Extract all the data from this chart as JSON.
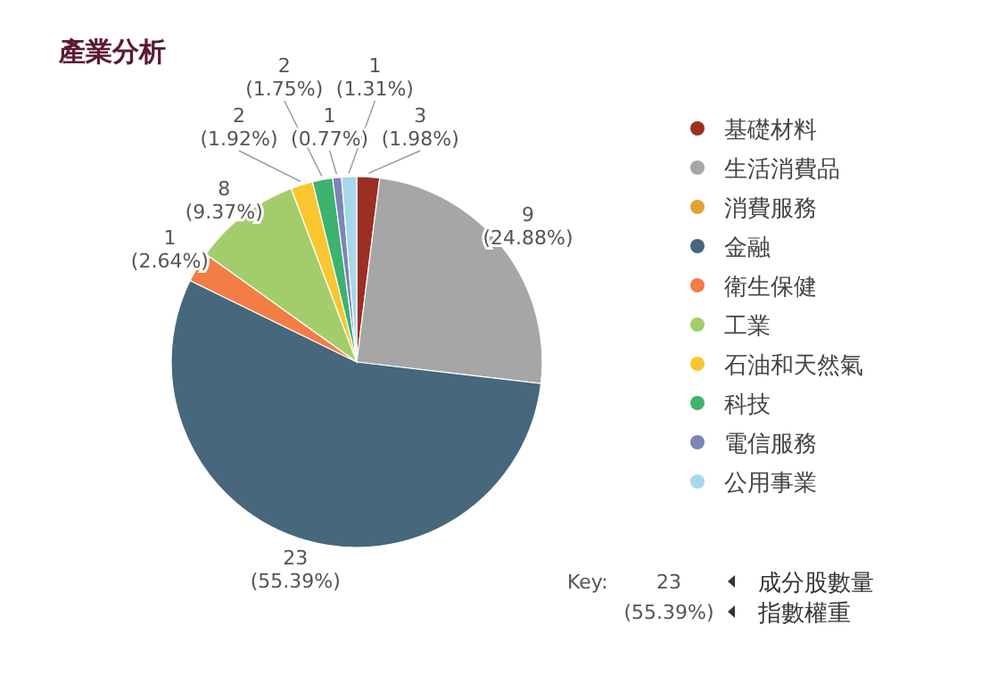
{
  "chart_data": {
    "type": "pie",
    "title": "產業分析",
    "categories": [
      "基礎材料",
      "生活消費品",
      "消費服務",
      "金融",
      "衛生保健",
      "工業",
      "石油和天然氣",
      "科技",
      "電信服務",
      "公用事業"
    ],
    "values": [
      1.98,
      24.88,
      0,
      55.39,
      2.64,
      9.37,
      1.92,
      1.75,
      0.77,
      1.31
    ],
    "colors": [
      "#9b2f24",
      "#a6a6a6",
      "#e3a235",
      "#46677c",
      "#f47c45",
      "#a3cd6b",
      "#f9c62f",
      "#3db36e",
      "#7b85b8",
      "#a6d8ea"
    ],
    "value_labels": [
      "3 (1.98%)",
      "9 (24.88%)",
      null,
      "23 (55.39%)",
      "1 (2.64%)",
      "8 (9.37%)",
      "2 (1.92%)",
      "2 (1.75%)",
      "1 (0.77%)",
      "1 (1.31%)"
    ],
    "legend": "right",
    "annotations": [
      "Key:",
      "23",
      "(55.39%)",
      "成分股數量",
      "指數權重"
    ]
  }
}
